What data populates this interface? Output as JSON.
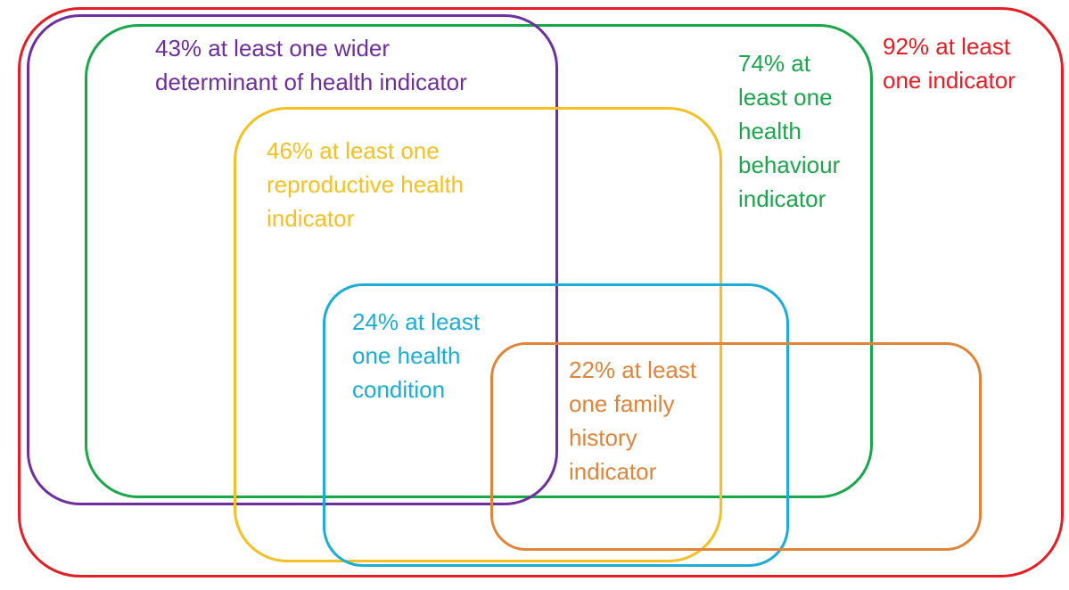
{
  "sets": {
    "any": {
      "lines": [
        "92% at least",
        "one indicator"
      ],
      "color": "#e31e24"
    },
    "health_behaviour": {
      "lines": [
        "74% at",
        "least one",
        "health",
        "behaviour",
        "indicator"
      ],
      "color": "#1aa64a"
    },
    "wider_determinant": {
      "lines": [
        "43% at least one wider",
        "determinant of health indicator"
      ],
      "color": "#6f2e9e"
    },
    "reproductive_health": {
      "lines": [
        "46% at least one",
        "reproductive health",
        "indicator"
      ],
      "color": "#f5c023"
    },
    "health_condition": {
      "lines": [
        "24% at least",
        "one health",
        "condition"
      ],
      "color": "#1badd8"
    },
    "family_history": {
      "lines": [
        "22% at least",
        "one family",
        "history",
        "indicator"
      ],
      "color": "#e0843a"
    }
  }
}
